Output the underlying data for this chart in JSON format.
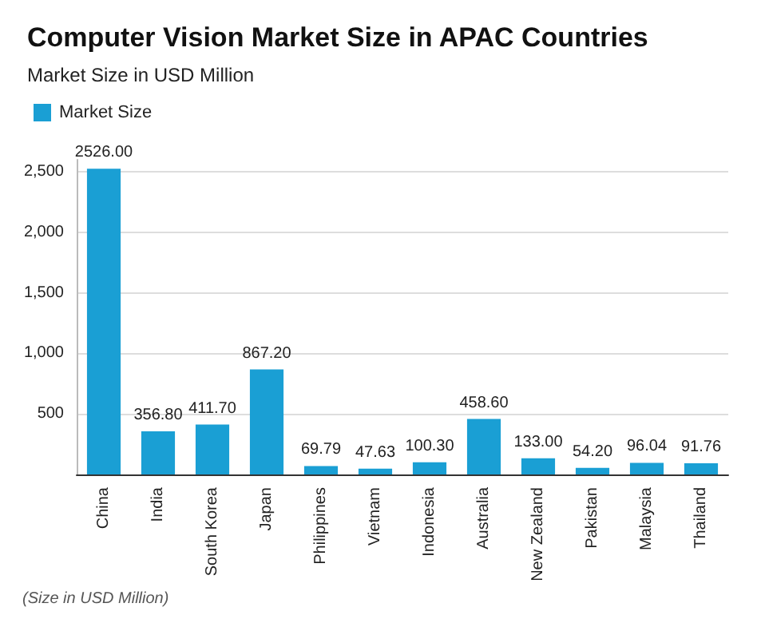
{
  "chart_data": {
    "type": "bar",
    "title": "Computer Vision Market Size in APAC Countries",
    "subtitle": "Market Size in USD Million",
    "categories": [
      "China",
      "India",
      "South Korea",
      "Japan",
      "Philippines",
      "Vietnam",
      "Indonesia",
      "Australia",
      "New Zealand",
      "Pakistan",
      "Malaysia",
      "Thailand"
    ],
    "series": [
      {
        "name": "Market Size",
        "color": "#1a9fd4",
        "values": [
          2526.0,
          356.8,
          411.7,
          867.2,
          69.79,
          47.63,
          100.3,
          458.6,
          133.0,
          54.2,
          96.04,
          91.76
        ],
        "value_labels": [
          "2526.00",
          "356.80",
          "411.70",
          "867.20",
          "69.79",
          "47.63",
          "100.30",
          "458.60",
          "133.00",
          "54.20",
          "96.04",
          "91.76"
        ]
      }
    ],
    "ylim": [
      0,
      2600
    ],
    "yticks": [
      {
        "value": 0,
        "label": null
      },
      {
        "value": 500,
        "label": "500"
      },
      {
        "value": 1000,
        "label": "1,000"
      },
      {
        "value": 1500,
        "label": "1,500"
      },
      {
        "value": 2000,
        "label": "2,000"
      },
      {
        "value": 2500,
        "label": "2,500"
      }
    ],
    "grid": "y",
    "legend": "top left",
    "annotations": [
      "(Size in USD Million)"
    ]
  }
}
